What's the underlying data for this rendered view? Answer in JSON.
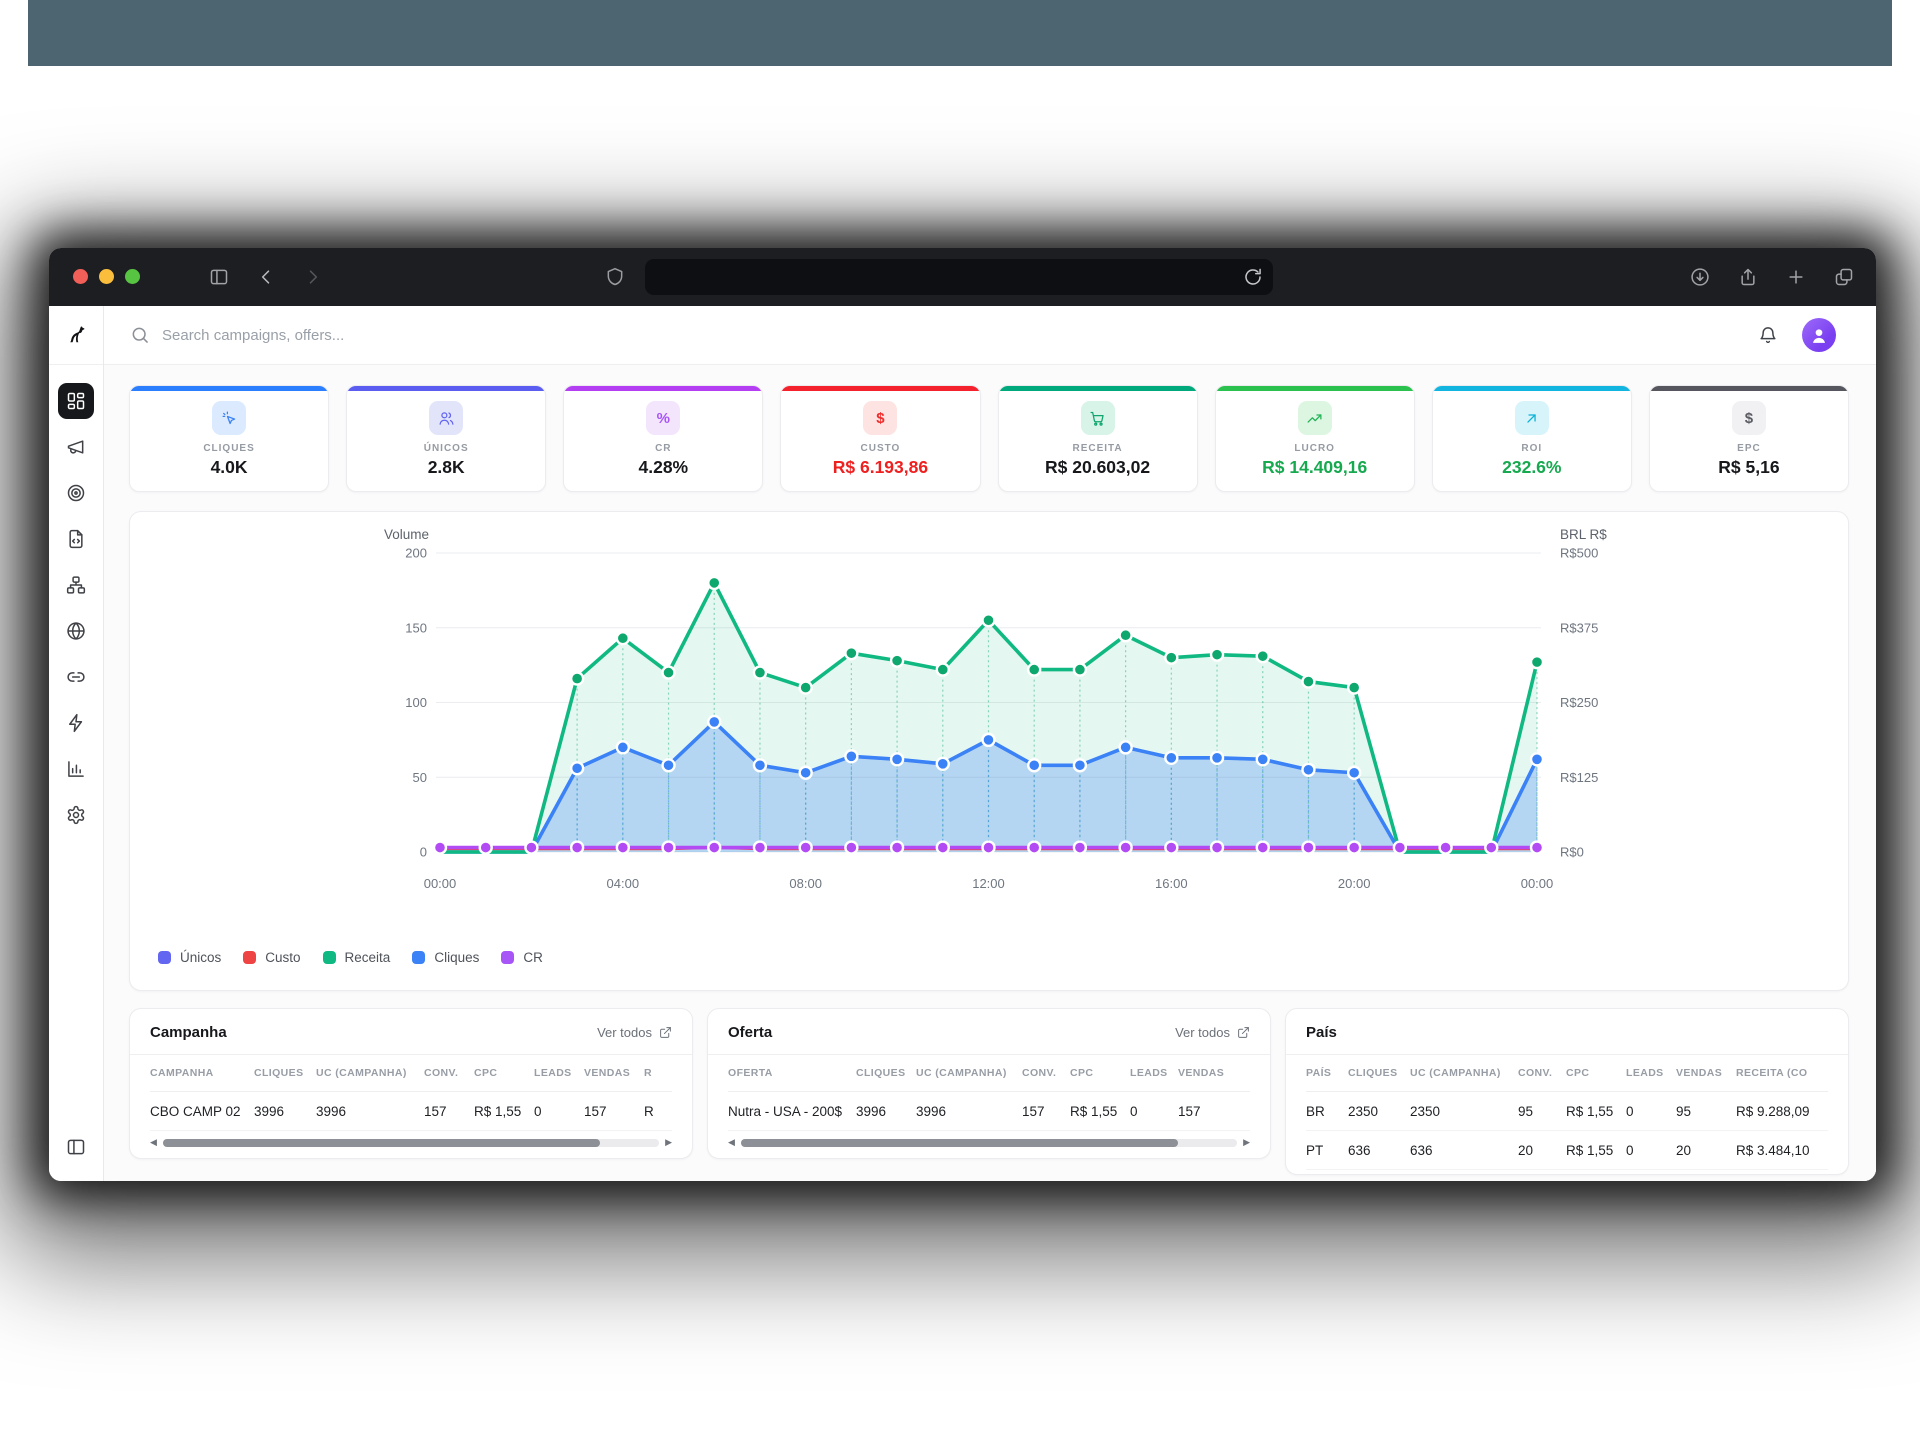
{
  "browser": {
    "url_value": "",
    "titlebar_icons": [
      "panel-left-icon",
      "back-icon",
      "forward-icon",
      "shield-icon",
      "reload-icon",
      "download-icon",
      "share-icon",
      "new-tab-icon",
      "tabs-icon"
    ]
  },
  "sidebar": {
    "logo_icon": "dog-logo-icon",
    "items": [
      {
        "icon": "dashboard-icon",
        "active": true
      },
      {
        "icon": "megaphone-icon",
        "active": false
      },
      {
        "icon": "target-icon",
        "active": false
      },
      {
        "icon": "file-code-icon",
        "active": false
      },
      {
        "icon": "sitemap-icon",
        "active": false
      },
      {
        "icon": "globe-icon",
        "active": false
      },
      {
        "icon": "link-icon",
        "active": false
      },
      {
        "icon": "zap-icon",
        "active": false
      },
      {
        "icon": "bar-chart-icon",
        "active": false
      },
      {
        "icon": "settings-icon",
        "active": false
      }
    ],
    "bottom_icon": "panel-left-icon"
  },
  "header": {
    "search_placeholder": "Search campaigns, offers..."
  },
  "kpis": [
    {
      "label": "CLIQUES",
      "value": "4.0K",
      "icon": "cursor-click-icon",
      "accent": "#2b7fff",
      "chip_bg": "#dbeafe",
      "icon_color": "#3b82f6",
      "value_color": "#17181c"
    },
    {
      "label": "ÚNICOS",
      "value": "2.8K",
      "icon": "users-icon",
      "accent": "#5a5df0",
      "chip_bg": "#e2e5fa",
      "icon_color": "#6366f1",
      "value_color": "#17181c"
    },
    {
      "label": "CR",
      "value": "4.28%",
      "icon": "percent-icon",
      "accent": "#b43ff2",
      "chip_bg": "#f3e5fc",
      "icon_color": "#a855f7",
      "value_color": "#17181c"
    },
    {
      "label": "CUSTO",
      "value": "R$ 6.193,86",
      "icon": "dollar-icon",
      "accent": "#f3222d",
      "chip_bg": "#fde3e1",
      "icon_color": "#ef2d2d",
      "value_color": "#ef2020"
    },
    {
      "label": "RECEITA",
      "value": "R$ 20.603,02",
      "icon": "cart-icon",
      "accent": "#00a97c",
      "chip_bg": "#d8f3e8",
      "icon_color": "#10a56f",
      "value_color": "#17181c"
    },
    {
      "label": "LUCRO",
      "value": "R$ 14.409,16",
      "icon": "trend-up-icon",
      "accent": "#2bc14e",
      "chip_bg": "#dcf6e2",
      "icon_color": "#22b356",
      "value_color": "#17a94f"
    },
    {
      "label": "ROI",
      "value": "232.6%",
      "icon": "arrow-up-right-icon",
      "accent": "#12b5e0",
      "chip_bg": "#d8f4fb",
      "icon_color": "#0ab0d6",
      "value_color": "#17a94f"
    },
    {
      "label": "EPC",
      "value": "R$ 5,16",
      "icon": "dollar-icon",
      "accent": "#55565e",
      "chip_bg": "#f1f1f3",
      "icon_color": "#5a5b63",
      "value_color": "#17181c"
    }
  ],
  "chart_data": {
    "type": "area",
    "x_hours": [
      0,
      1,
      2,
      3,
      4,
      5,
      6,
      7,
      8,
      9,
      10,
      11,
      12,
      13,
      14,
      15,
      16,
      17,
      18,
      19,
      20,
      21,
      22,
      23,
      24
    ],
    "x_tick_hours": [
      0,
      4,
      8,
      12,
      16,
      20,
      24
    ],
    "x_tick_labels": [
      "00:00",
      "04:00",
      "08:00",
      "12:00",
      "16:00",
      "20:00",
      "00:00"
    ],
    "left_axis": {
      "label": "Volume",
      "range": [
        0,
        200
      ],
      "ticks": [
        0,
        50,
        100,
        150,
        200
      ],
      "tick_labels": [
        "0",
        "50",
        "100",
        "150",
        "200"
      ]
    },
    "right_axis": {
      "label": "BRL R$",
      "tick_labels": [
        "R$0",
        "R$125",
        "R$250",
        "R$375",
        "R$500"
      ]
    },
    "grid": true,
    "legend_position": "bottom-left",
    "series": [
      {
        "name": "Únicos",
        "color": "#6366f1",
        "values": [
          0,
          0,
          0,
          56,
          70,
          58,
          87,
          58,
          53,
          64,
          62,
          59,
          75,
          58,
          58,
          70,
          63,
          63,
          62,
          55,
          53,
          0,
          0,
          0,
          62
        ]
      },
      {
        "name": "Custo",
        "color": "#ef4444",
        "values": [
          2,
          2,
          2,
          2,
          2,
          2,
          3,
          2,
          2,
          2,
          2,
          2,
          2,
          2,
          2,
          2,
          2,
          2,
          2,
          2,
          2,
          2,
          2,
          2,
          2
        ]
      },
      {
        "name": "Receita",
        "color": "#10b981",
        "values": [
          0,
          0,
          0,
          116,
          143,
          120,
          180,
          120,
          110,
          133,
          128,
          122,
          155,
          122,
          122,
          145,
          130,
          132,
          131,
          114,
          110,
          0,
          0,
          0,
          127
        ]
      },
      {
        "name": "Cliques",
        "color": "#3b82f6",
        "values": [
          0,
          0,
          0,
          56,
          70,
          58,
          87,
          58,
          53,
          64,
          62,
          59,
          75,
          58,
          58,
          70,
          63,
          63,
          62,
          55,
          53,
          0,
          0,
          0,
          62
        ]
      },
      {
        "name": "CR",
        "color": "#a855f7",
        "values": [
          3,
          3,
          3,
          3,
          3,
          3,
          3,
          3,
          3,
          3,
          3,
          3,
          3,
          3,
          3,
          3,
          3,
          3,
          3,
          3,
          3,
          3,
          3,
          3,
          3
        ]
      }
    ]
  },
  "tables": [
    {
      "id": "campanha",
      "title": "Campanha",
      "link_label": "Ver todos",
      "has_scrollbar": true,
      "columns": [
        "CAMPANHA",
        "CLIQUES",
        "UC (CAMPANHA)",
        "CONV.",
        "CPC",
        "LEADS",
        "VENDAS",
        "R"
      ],
      "rows": [
        [
          "CBO CAMP 02",
          "3996",
          "3996",
          "157",
          "R$ 1,55",
          "0",
          "157",
          "R"
        ]
      ]
    },
    {
      "id": "oferta",
      "title": "Oferta",
      "link_label": "Ver todos",
      "has_scrollbar": true,
      "columns": [
        "OFERTA",
        "CLIQUES",
        "UC (CAMPANHA)",
        "CONV.",
        "CPC",
        "LEADS",
        "VENDAS"
      ],
      "rows": [
        [
          "Nutra - USA - 200$",
          "3996",
          "3996",
          "157",
          "R$ 1,55",
          "0",
          "157"
        ]
      ]
    },
    {
      "id": "pais",
      "title": "País",
      "link_label": null,
      "has_scrollbar": false,
      "columns": [
        "PAÍS",
        "CLIQUES",
        "UC (CAMPANHA)",
        "CONV.",
        "CPC",
        "LEADS",
        "VENDAS",
        "RECEITA (CO"
      ],
      "rows": [
        [
          "BR",
          "2350",
          "2350",
          "95",
          "R$ 1,55",
          "0",
          "95",
          "R$ 9.288,09"
        ],
        [
          "PT",
          "636",
          "636",
          "20",
          "R$ 1,55",
          "0",
          "20",
          "R$ 3.484,10"
        ]
      ]
    }
  ]
}
